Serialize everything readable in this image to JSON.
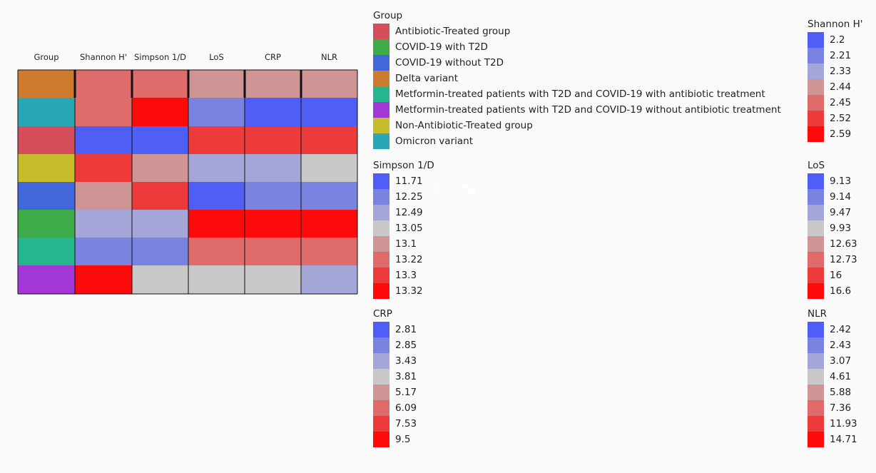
{
  "chart_data": {
    "type": "heatmap",
    "columns": [
      "Group",
      "Shannon H'",
      "Simpson 1/D",
      "LoS",
      "CRP",
      "NLR"
    ],
    "rows": [
      {
        "group": "Delta variant",
        "Shannon H'": 2.45,
        "Simpson 1/D": 13.22,
        "LoS": 12.63,
        "CRP": 5.17,
        "NLR": 5.88
      },
      {
        "group": "Omicron variant",
        "Shannon H'": 2.45,
        "Simpson 1/D": 13.32,
        "LoS": 9.14,
        "CRP": 2.81,
        "NLR": 2.42
      },
      {
        "group": "Antibiotic-Treated group",
        "Shannon H'": 2.2,
        "Simpson 1/D": 11.71,
        "LoS": 16,
        "CRP": 7.53,
        "NLR": 11.93
      },
      {
        "group": "Non-Antibiotic-Treated group",
        "Shannon H'": 2.52,
        "Simpson 1/D": 13.1,
        "LoS": 9.47,
        "CRP": 3.43,
        "NLR": 4.61
      },
      {
        "group": "COVID-19 without T2D",
        "Shannon H'": 2.44,
        "Simpson 1/D": 13.3,
        "LoS": 9.13,
        "CRP": 2.85,
        "NLR": 2.43
      },
      {
        "group": "COVID-19 with T2D",
        "Shannon H'": 2.33,
        "Simpson 1/D": 12.49,
        "LoS": 16.6,
        "CRP": 9.5,
        "NLR": 14.71
      },
      {
        "group": "Metformin-treated patients with T2D and COVID-19 with antibiotic treatment",
        "Shannon H'": 2.21,
        "Simpson 1/D": 12.25,
        "LoS": 12.73,
        "CRP": 6.09,
        "NLR": 7.36
      },
      {
        "group": "Metformin-treated patients with T2D and COVID-19 without antibiotic treatment",
        "Shannon H'": 2.59,
        "Simpson 1/D": 13.05,
        "LoS": 9.93,
        "CRP": 3.81,
        "NLR": 3.07
      }
    ],
    "legends": {
      "group": {
        "title": "Group",
        "items": [
          {
            "label": "Antibiotic-Treated group",
            "color": "#d64d5c"
          },
          {
            "label": "COVID-19 with T2D",
            "color": "#3dab47"
          },
          {
            "label": "COVID-19 without T2D",
            "color": "#4267db"
          },
          {
            "label": "Delta variant",
            "color": "#cf7b2f"
          },
          {
            "label": "Metformin-treated patients with T2D and COVID-19 with antibiotic treatment",
            "color": "#27b590"
          },
          {
            "label": "Metformin-treated patients with T2D and COVID-19 without antibiotic treatment",
            "color": "#a236d6"
          },
          {
            "label": "Non-Antibiotic-Treated group",
            "color": "#c7bd2c"
          },
          {
            "label": "Omicron variant",
            "color": "#27a8b4"
          }
        ]
      },
      "Shannon H'": {
        "title": "Shannon H'",
        "items": [
          "2.2",
          "2.21",
          "2.33",
          "2.44",
          "2.45",
          "2.52",
          "2.59"
        ]
      },
      "Simpson 1/D": {
        "title": "Simpson 1/D",
        "items": [
          "11.71",
          "12.25",
          "12.49",
          "13.05",
          "13.1",
          "13.22",
          "13.3",
          "13.32"
        ]
      },
      "LoS": {
        "title": "LoS",
        "items": [
          "9.13",
          "9.14",
          "9.47",
          "9.93",
          "12.63",
          "12.73",
          "16",
          "16.6"
        ]
      },
      "CRP": {
        "title": "CRP",
        "items": [
          "2.81",
          "2.85",
          "3.43",
          "3.81",
          "5.17",
          "6.09",
          "7.53",
          "9.5"
        ]
      },
      "NLR": {
        "title": "NLR",
        "items": [
          "2.42",
          "2.43",
          "3.07",
          "4.61",
          "5.88",
          "7.36",
          "11.93",
          "14.71"
        ]
      }
    },
    "scale_colors_8": [
      "#4f5ef5",
      "#7a83e0",
      "#a3a6d6",
      "#c8c8c8",
      "#cf9595",
      "#df6b6b",
      "#ed3a3a",
      "#fd0a0a"
    ],
    "scale_colors_7": [
      "#4f5ef5",
      "#7a83e0",
      "#a3a6d6",
      "#cf9595",
      "#df6b6b",
      "#ed3a3a",
      "#fd0a0a"
    ]
  }
}
